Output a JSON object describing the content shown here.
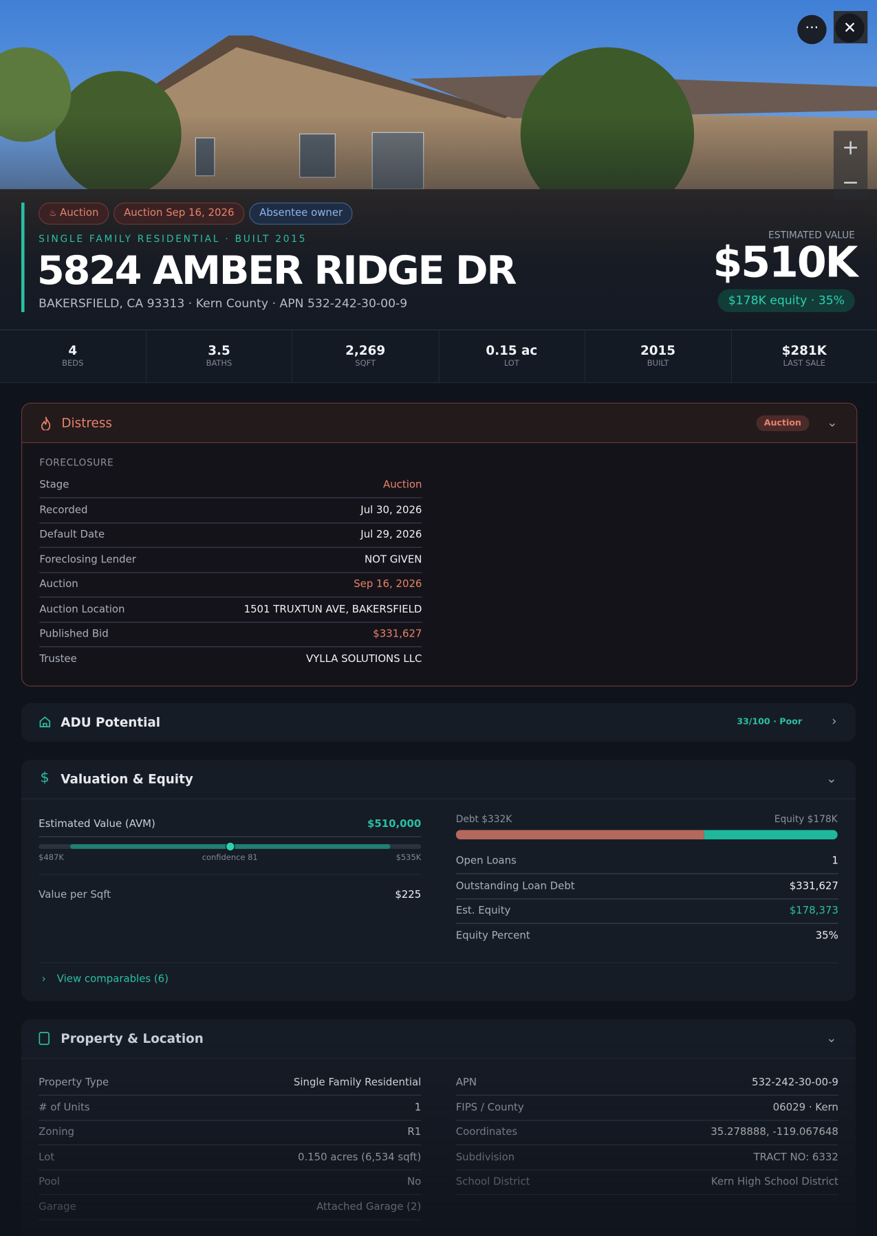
{
  "header": {
    "badges": [
      "Auction",
      "Auction Sep 16, 2026",
      "Absentee owner"
    ],
    "subtitle": "SINGLE FAMILY RESIDENTIAL · BUILT 2015",
    "address": "5824 AMBER RIDGE DR",
    "location": "BAKERSFIELD, CA 93313 · Kern County · APN 532-242-30-00-9",
    "estimate_label": "ESTIMATED VALUE",
    "estimate": "$510K",
    "equity": "$178K equity · 35%"
  },
  "stats": [
    {
      "value": "4",
      "label": "BEDS"
    },
    {
      "value": "3.5",
      "label": "BATHS"
    },
    {
      "value": "2,269",
      "label": "SQFT"
    },
    {
      "value": "0.15 ac",
      "label": "LOT"
    },
    {
      "value": "2015",
      "label": "BUILT"
    },
    {
      "value": "$281K",
      "label": "LAST SALE"
    }
  ],
  "distress": {
    "title": "Distress",
    "badge": "Auction",
    "section": "FORECLOSURE",
    "rows": [
      {
        "label": "Stage",
        "value": "Auction",
        "color": "#e8826a"
      },
      {
        "label": "Recorded",
        "value": "Jul 30, 2026"
      },
      {
        "label": "Default Date",
        "value": "Jul 29, 2026"
      },
      {
        "label": "Foreclosing Lender",
        "value": "NOT GIVEN"
      },
      {
        "label": "Auction",
        "value": "Sep 16, 2026",
        "color": "#e8826a"
      },
      {
        "label": "Auction Location",
        "value": "1501 TRUXTUN AVE, BAKERSFIELD"
      },
      {
        "label": "Published Bid",
        "value": "$331,627",
        "color": "#e8826a"
      },
      {
        "label": "Trustee",
        "value": "VYLLA SOLUTIONS LLC"
      }
    ]
  },
  "adu": {
    "title": "ADU Potential",
    "score": "33/100 · Poor"
  },
  "valuation": {
    "title": "Valuation & Equity",
    "avm_label": "Estimated Value (AVM)",
    "avm_value": "$510,000",
    "range_low": "$487K",
    "confidence": "confidence 81",
    "range_high": "$535K",
    "left_rows": [
      {
        "label": "Value per Sqft",
        "value": "$225"
      }
    ],
    "debt_label": "Debt $332K",
    "equity_label": "Equity $178K",
    "right_rows": [
      {
        "label": "Open Loans",
        "value": "1"
      },
      {
        "label": "Outstanding Loan Debt",
        "value": "$331,627"
      },
      {
        "label": "Est. Equity",
        "value": "$178,373",
        "color": "#2bbfa4"
      },
      {
        "label": "Equity Percent",
        "value": "35%"
      }
    ],
    "comparables": "View comparables (6)"
  },
  "property": {
    "title": "Property & Location",
    "left_rows": [
      {
        "label": "Property Type",
        "value": "Single Family Residential"
      },
      {
        "label": "# of Units",
        "value": "1"
      },
      {
        "label": "Zoning",
        "value": "R1"
      },
      {
        "label": "Lot",
        "value": "0.150 acres (6,534 sqft)"
      },
      {
        "label": "Pool",
        "value": "No"
      },
      {
        "label": "Garage",
        "value": "Attached Garage (2)"
      }
    ],
    "right_rows": [
      {
        "label": "APN",
        "value": "532-242-30-00-9"
      },
      {
        "label": "FIPS / County",
        "value": "06029 · Kern"
      },
      {
        "label": "Coordinates",
        "value": "35.278888, -119.067648"
      },
      {
        "label": "Subdivision",
        "value": "TRACT NO: 6332"
      },
      {
        "label": "School District",
        "value": "Kern High School District"
      }
    ]
  }
}
